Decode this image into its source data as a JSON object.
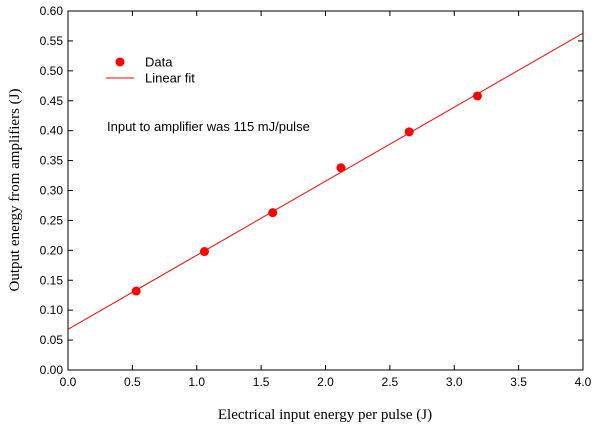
{
  "chart_data": {
    "type": "scatter",
    "xlabel": "Electrical input energy per pulse (J)",
    "ylabel": "Output energy from amplifiers (J)",
    "xlim": [
      0.0,
      4.0
    ],
    "ylim": [
      0.0,
      0.6
    ],
    "x_ticks": [
      "0.0",
      "0.5",
      "1.0",
      "1.5",
      "2.0",
      "2.5",
      "3.0",
      "3.5",
      "4.0"
    ],
    "y_ticks": [
      "0.00",
      "0.05",
      "0.10",
      "0.15",
      "0.20",
      "0.25",
      "0.30",
      "0.35",
      "0.40",
      "0.45",
      "0.50",
      "0.55",
      "0.60"
    ],
    "grid": false,
    "legend_position": "top-left",
    "colors": {
      "data": "#ff0000",
      "fit": "#ff0000"
    },
    "series": [
      {
        "name": "Data",
        "kind": "points",
        "x": [
          0.53,
          1.06,
          1.59,
          2.12,
          2.65,
          3.18
        ],
        "y": [
          0.132,
          0.198,
          0.263,
          0.338,
          0.398,
          0.458
        ]
      },
      {
        "name": "Linear fit",
        "kind": "line",
        "x": [
          0.0,
          4.0
        ],
        "y": [
          0.068,
          0.563
        ]
      }
    ],
    "annotation": "Input to amplifier was 115 mJ/pulse"
  }
}
